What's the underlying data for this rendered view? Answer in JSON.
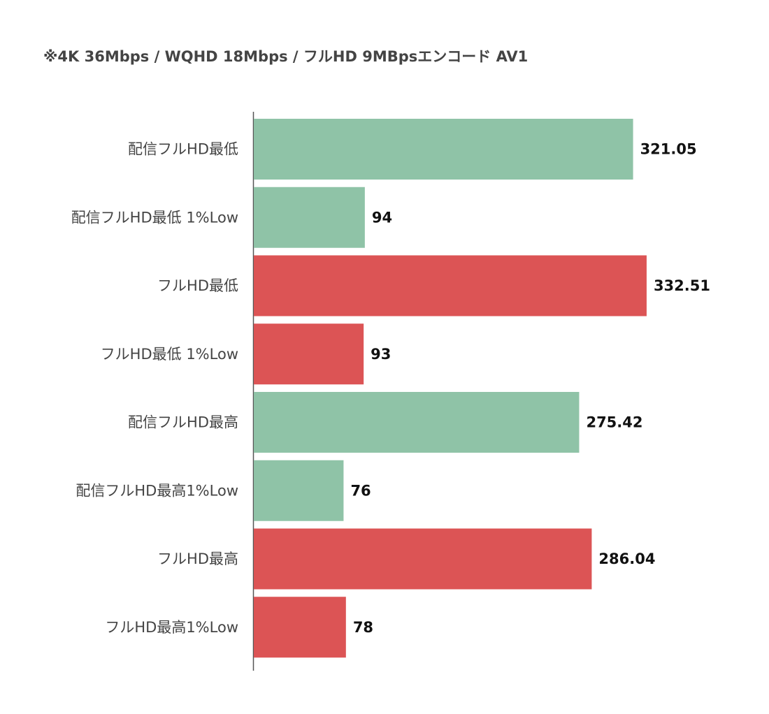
{
  "chart_data": {
    "type": "bar",
    "orientation": "horizontal",
    "title": "※4K 36Mbps / WQHD 18Mbps  / フルHD 9MBpsエンコード AV1",
    "categories": [
      "配信フルHD最低",
      "配信フルHD最低 1%Low",
      "フルHD最低",
      "フルHD最低 1%Low",
      "配信フルHD最高",
      "配信フルHD最高1%Low",
      "フルHD最高",
      "フルHD最高1%Low"
    ],
    "values": [
      321.05,
      94,
      332.51,
      93,
      275.42,
      76,
      286.04,
      78
    ],
    "colors": [
      "#8fc3a7",
      "#8fc3a7",
      "#dc5455",
      "#dc5455",
      "#8fc3a7",
      "#8fc3a7",
      "#dc5455",
      "#dc5455"
    ]
  }
}
